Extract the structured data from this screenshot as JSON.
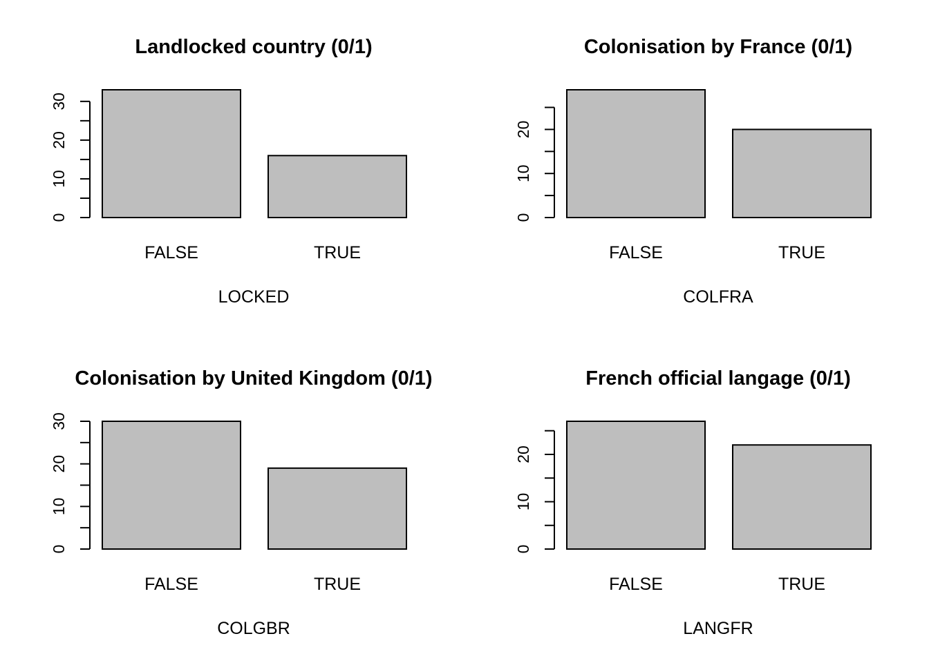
{
  "chart_data": [
    {
      "type": "bar",
      "title": "Landlocked country (0/1)",
      "xlabel": "LOCKED",
      "ylabel": "",
      "categories": [
        "FALSE",
        "TRUE"
      ],
      "values": [
        33,
        16
      ],
      "ylim": [
        0,
        33
      ],
      "yticks": [
        0,
        10,
        20,
        30
      ],
      "yticks_minor": [
        5,
        15,
        25
      ],
      "bar_color": "#bebebe",
      "grid": false
    },
    {
      "type": "bar",
      "title": "Colonisation by France (0/1)",
      "xlabel": "COLFRA",
      "ylabel": "",
      "categories": [
        "FALSE",
        "TRUE"
      ],
      "values": [
        29,
        20
      ],
      "ylim": [
        0,
        29
      ],
      "yticks": [
        0,
        10,
        20
      ],
      "yticks_minor": [
        5,
        15,
        25
      ],
      "bar_color": "#bebebe",
      "grid": false
    },
    {
      "type": "bar",
      "title": "Colonisation by United Kingdom (0/1)",
      "xlabel": "COLGBR",
      "ylabel": "",
      "categories": [
        "FALSE",
        "TRUE"
      ],
      "values": [
        30,
        19
      ],
      "ylim": [
        0,
        30
      ],
      "yticks": [
        0,
        10,
        20,
        30
      ],
      "yticks_minor": [
        5,
        15,
        25
      ],
      "bar_color": "#bebebe",
      "grid": false
    },
    {
      "type": "bar",
      "title": "French official langage (0/1)",
      "xlabel": "LANGFR",
      "ylabel": "",
      "categories": [
        "FALSE",
        "TRUE"
      ],
      "values": [
        27,
        22
      ],
      "ylim": [
        0,
        27
      ],
      "yticks": [
        0,
        10,
        20
      ],
      "yticks_minor": [
        5,
        15,
        25
      ],
      "bar_color": "#bebebe",
      "grid": false
    }
  ]
}
